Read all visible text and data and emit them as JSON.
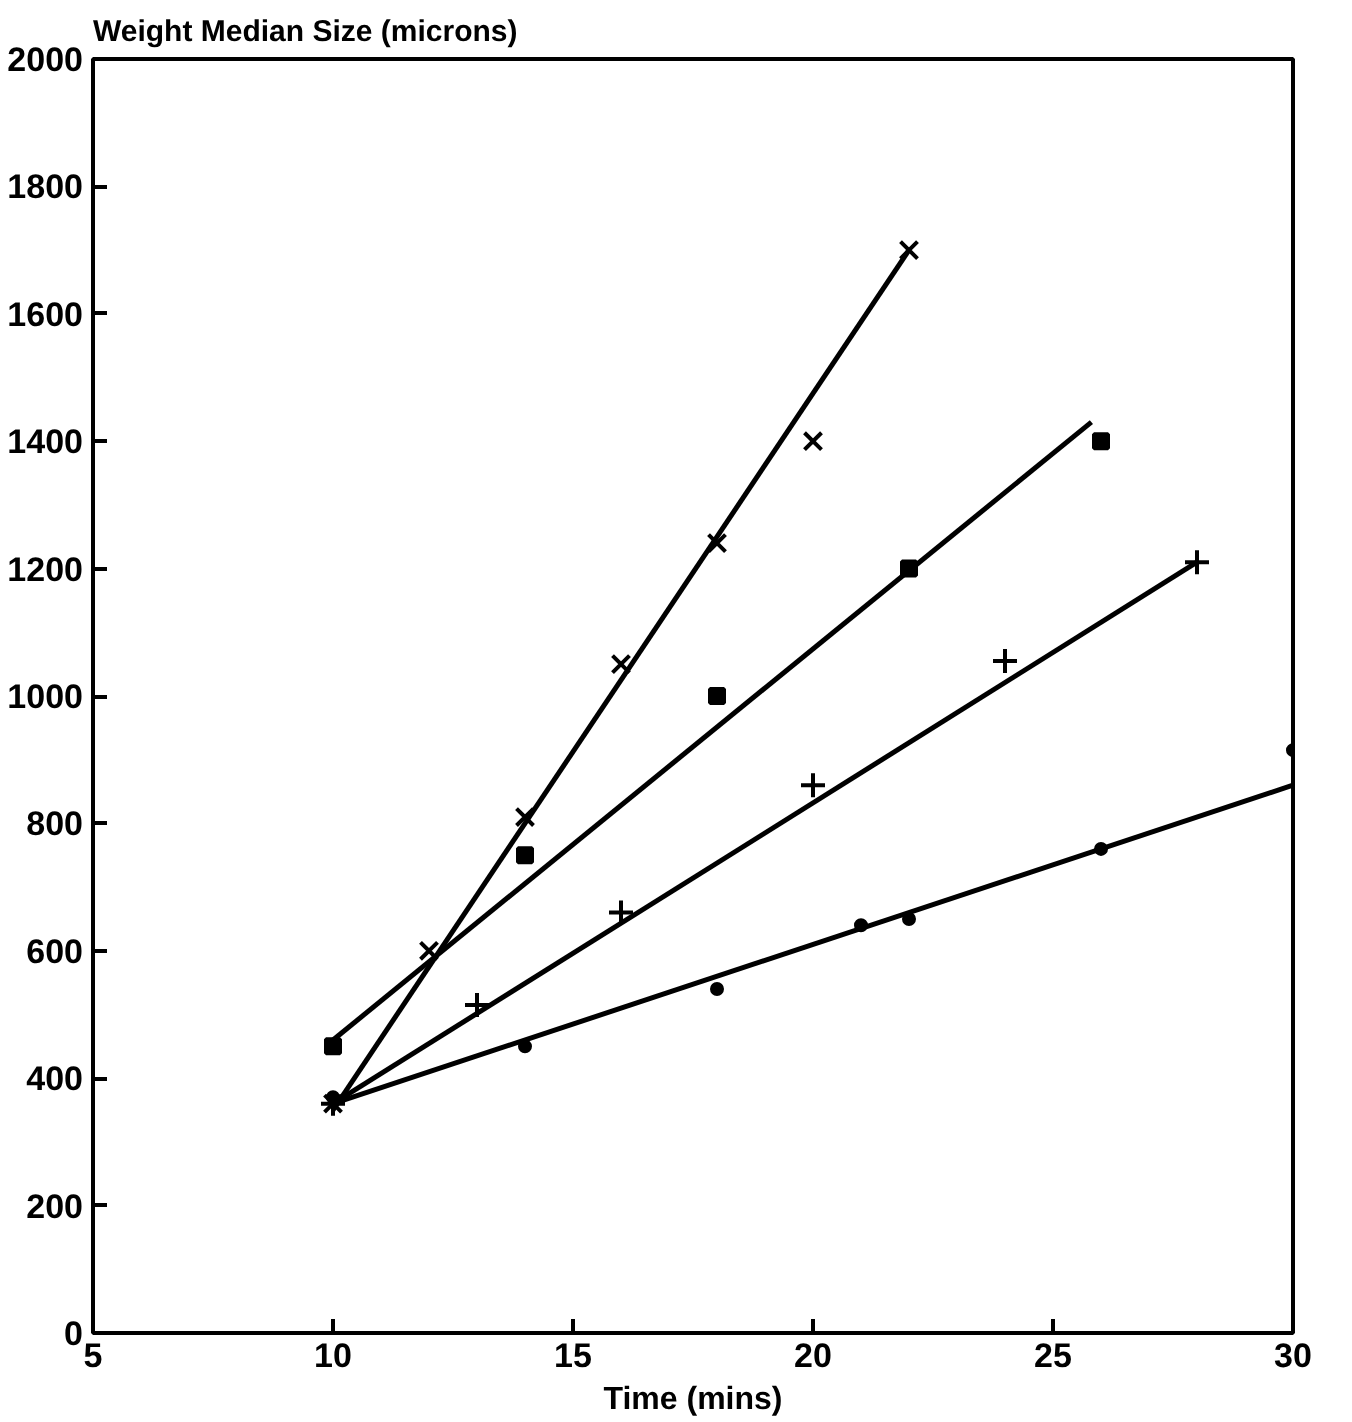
{
  "chart_data": {
    "type": "scatter",
    "ylabel": "Weight Median Size (microns)",
    "xlabel": "Time (mins)",
    "xlim": [
      5,
      30
    ],
    "xticks": [
      5,
      10,
      15,
      20,
      25,
      30
    ],
    "ylim": [
      0,
      2000
    ],
    "yticks": [
      0,
      200,
      400,
      600,
      800,
      1000,
      1200,
      1400,
      1600,
      1800,
      2000
    ],
    "series": [
      {
        "marker": "cross",
        "color": "#000000",
        "x": [
          10,
          12,
          14,
          16,
          18,
          20,
          22
        ],
        "values": [
          360,
          600,
          810,
          1050,
          1240,
          1400,
          1700
        ]
      },
      {
        "marker": "square",
        "color": "#000000",
        "x": [
          10,
          14,
          18,
          22,
          26
        ],
        "values": [
          450,
          750,
          1000,
          1200,
          1400
        ]
      },
      {
        "marker": "plus",
        "color": "#000000",
        "x": [
          10,
          13,
          16,
          20,
          24,
          28
        ],
        "values": [
          360,
          515,
          660,
          860,
          1055,
          1210
        ]
      },
      {
        "marker": "circle",
        "color": "#000000",
        "x": [
          10,
          14,
          18,
          21,
          22,
          26,
          30
        ],
        "values": [
          370,
          450,
          540,
          640,
          650,
          760,
          915
        ]
      },
      {
        "type": "line",
        "marker": "none",
        "line_style": "solid",
        "color": "#000000",
        "x": [
          10,
          22
        ],
        "values": [
          350,
          1700
        ]
      },
      {
        "type": "line",
        "marker": "none",
        "line_style": "solid",
        "color": "#000000",
        "x": [
          10,
          25.8
        ],
        "values": [
          460,
          1430
        ]
      },
      {
        "type": "line",
        "marker": "none",
        "line_style": "solid",
        "color": "#000000",
        "x": [
          10,
          28
        ],
        "values": [
          360,
          1210
        ]
      },
      {
        "type": "line",
        "marker": "none",
        "line_style": "solid",
        "color": "#000000",
        "x": [
          10,
          30
        ],
        "values": [
          360,
          860
        ]
      }
    ]
  }
}
